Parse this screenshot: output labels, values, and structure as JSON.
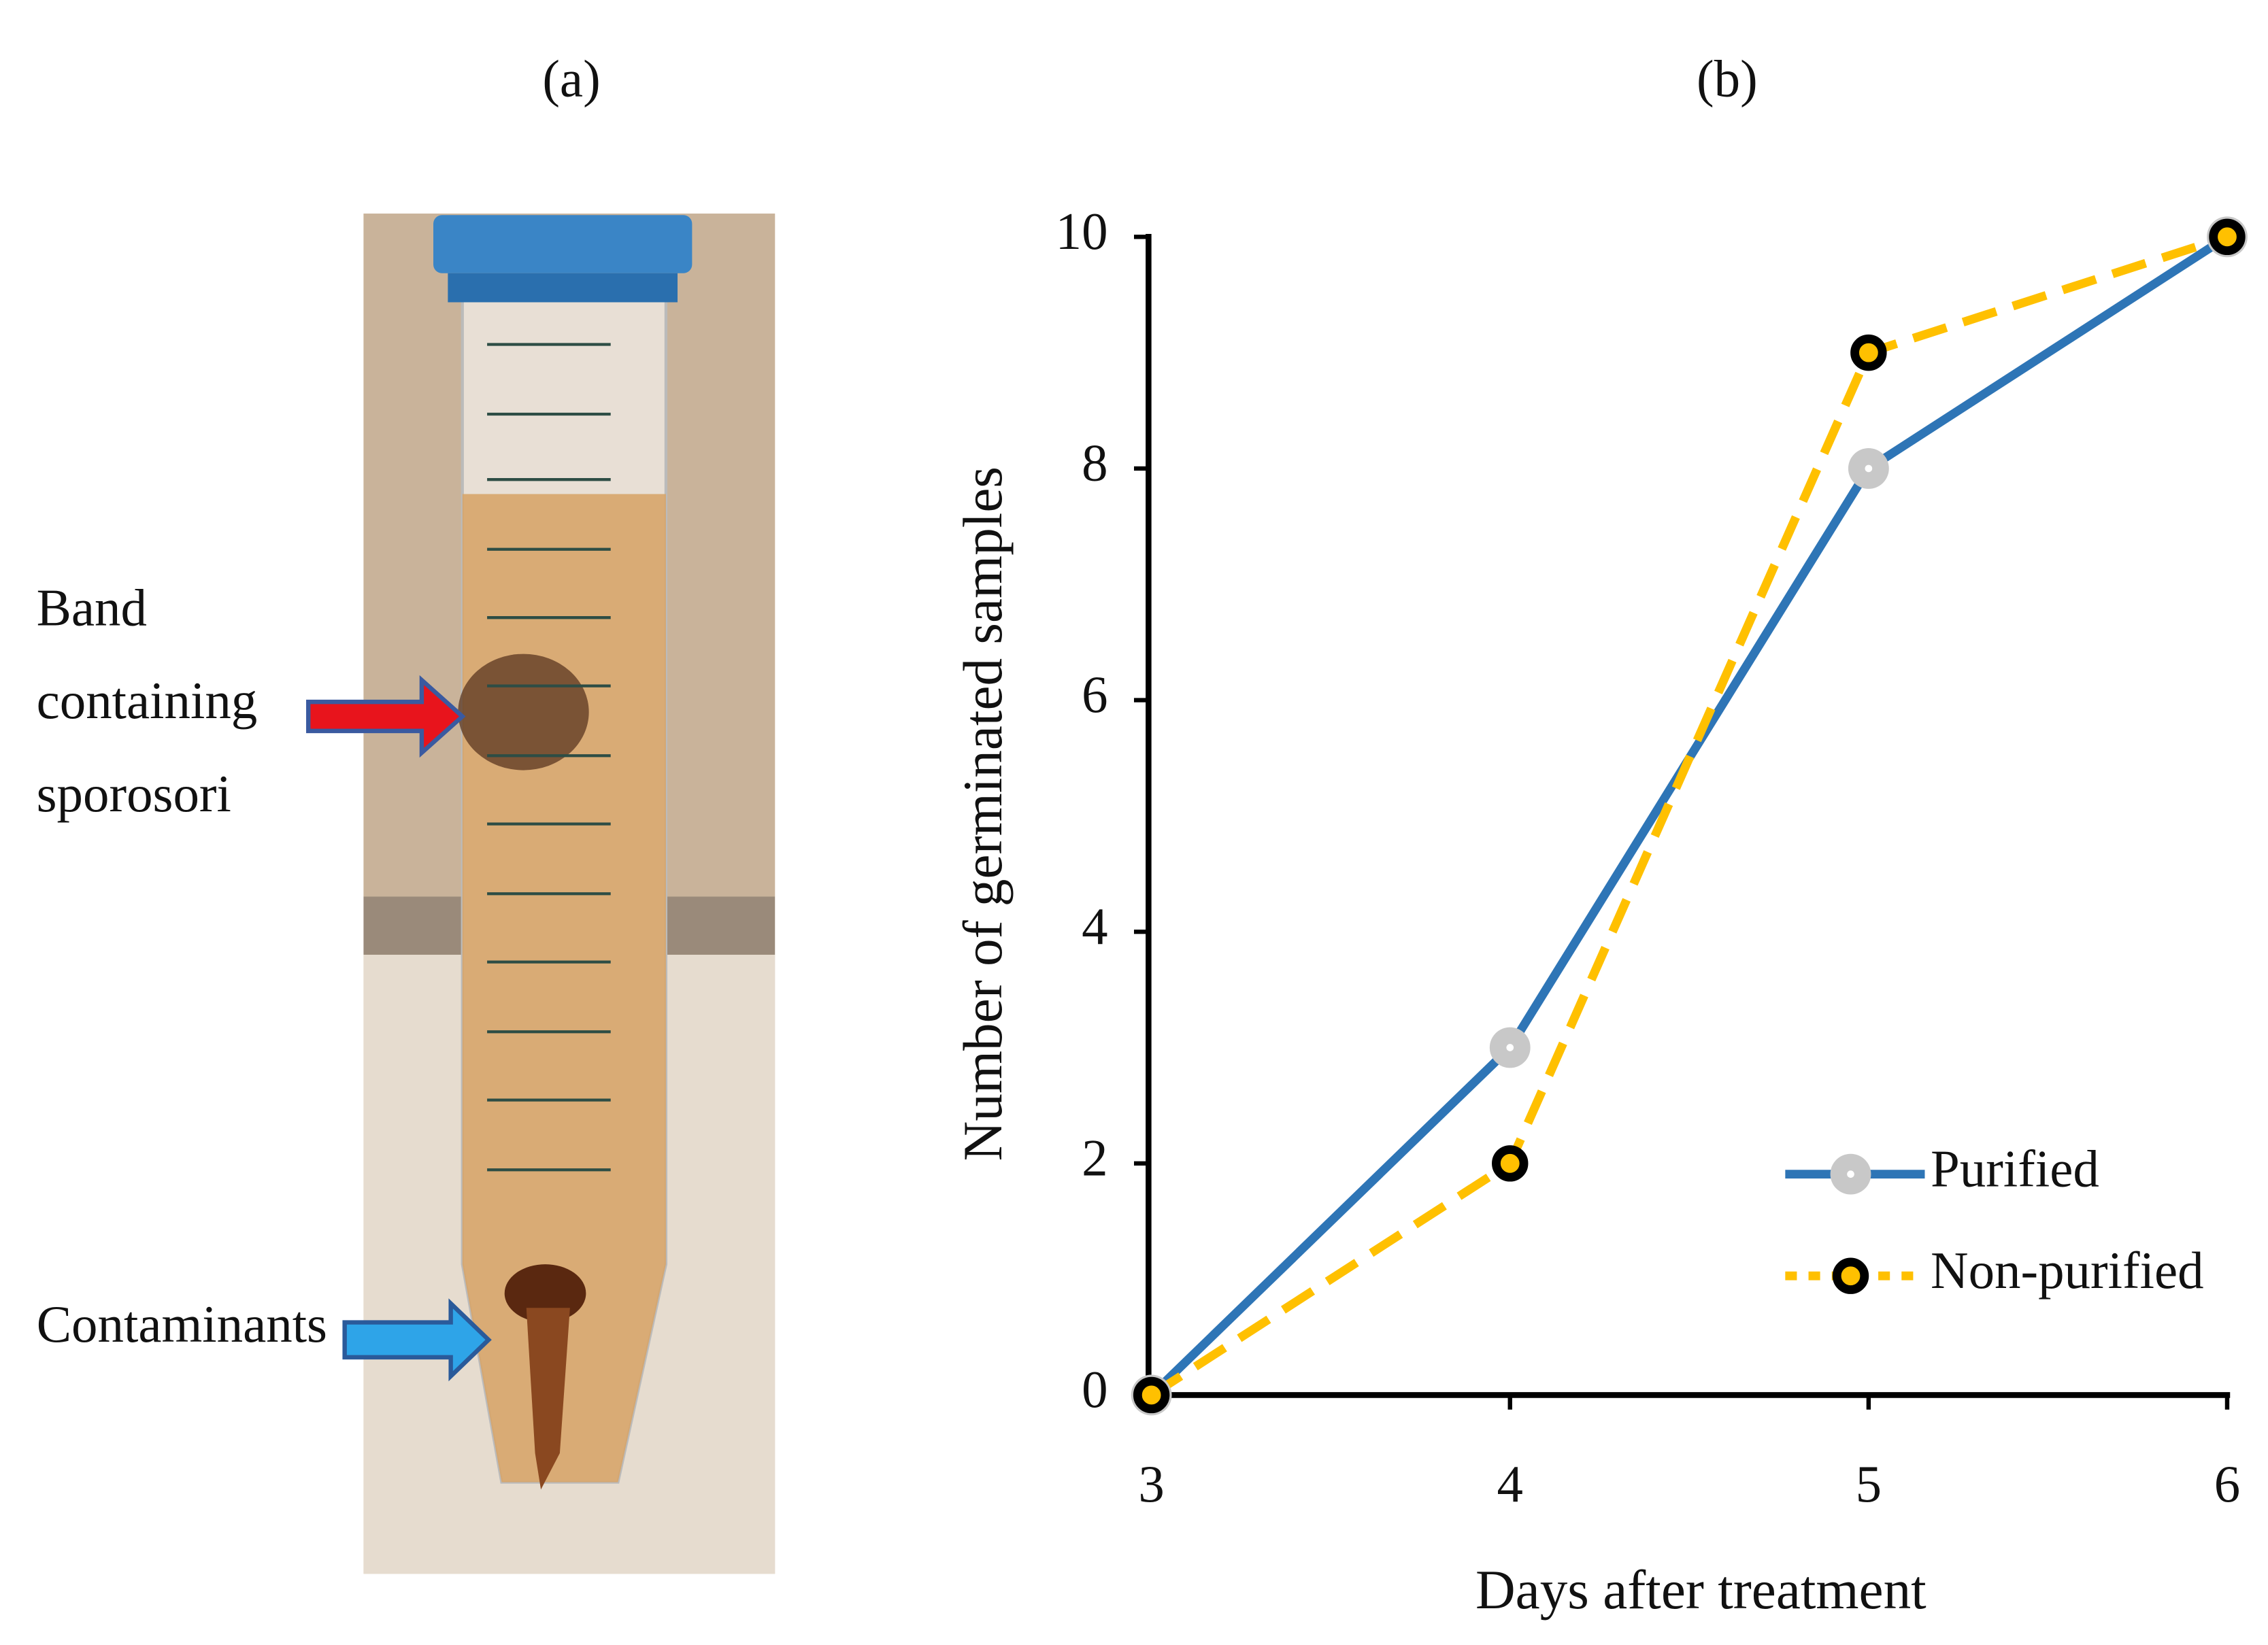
{
  "panel_a": {
    "label": "(a)",
    "annotations": [
      [
        "Band",
        "containing",
        "sporosori"
      ],
      [
        "Contaminants"
      ]
    ]
  },
  "chart_data": {
    "type": "line",
    "panel_label": "(b)",
    "x_label": "Days after treatment",
    "y_label": "Number of germinated samples",
    "x": [
      3,
      4,
      5,
      6
    ],
    "series": [
      {
        "name": "Purified",
        "color": "#2e75b6",
        "marker_color": "#c8c8c8",
        "values": [
          0,
          3,
          8,
          10
        ]
      },
      {
        "name": "Non-purified",
        "color": "#ffc000",
        "marker_color": "#000000",
        "values": [
          0,
          2,
          9,
          10
        ]
      }
    ],
    "xlim": [
      3,
      6
    ],
    "xticks": [
      3,
      4,
      5,
      6
    ],
    "ylim": [
      0,
      10
    ],
    "yticks": [
      0,
      2,
      4,
      6,
      8,
      10
    ],
    "legend": "lower right"
  }
}
